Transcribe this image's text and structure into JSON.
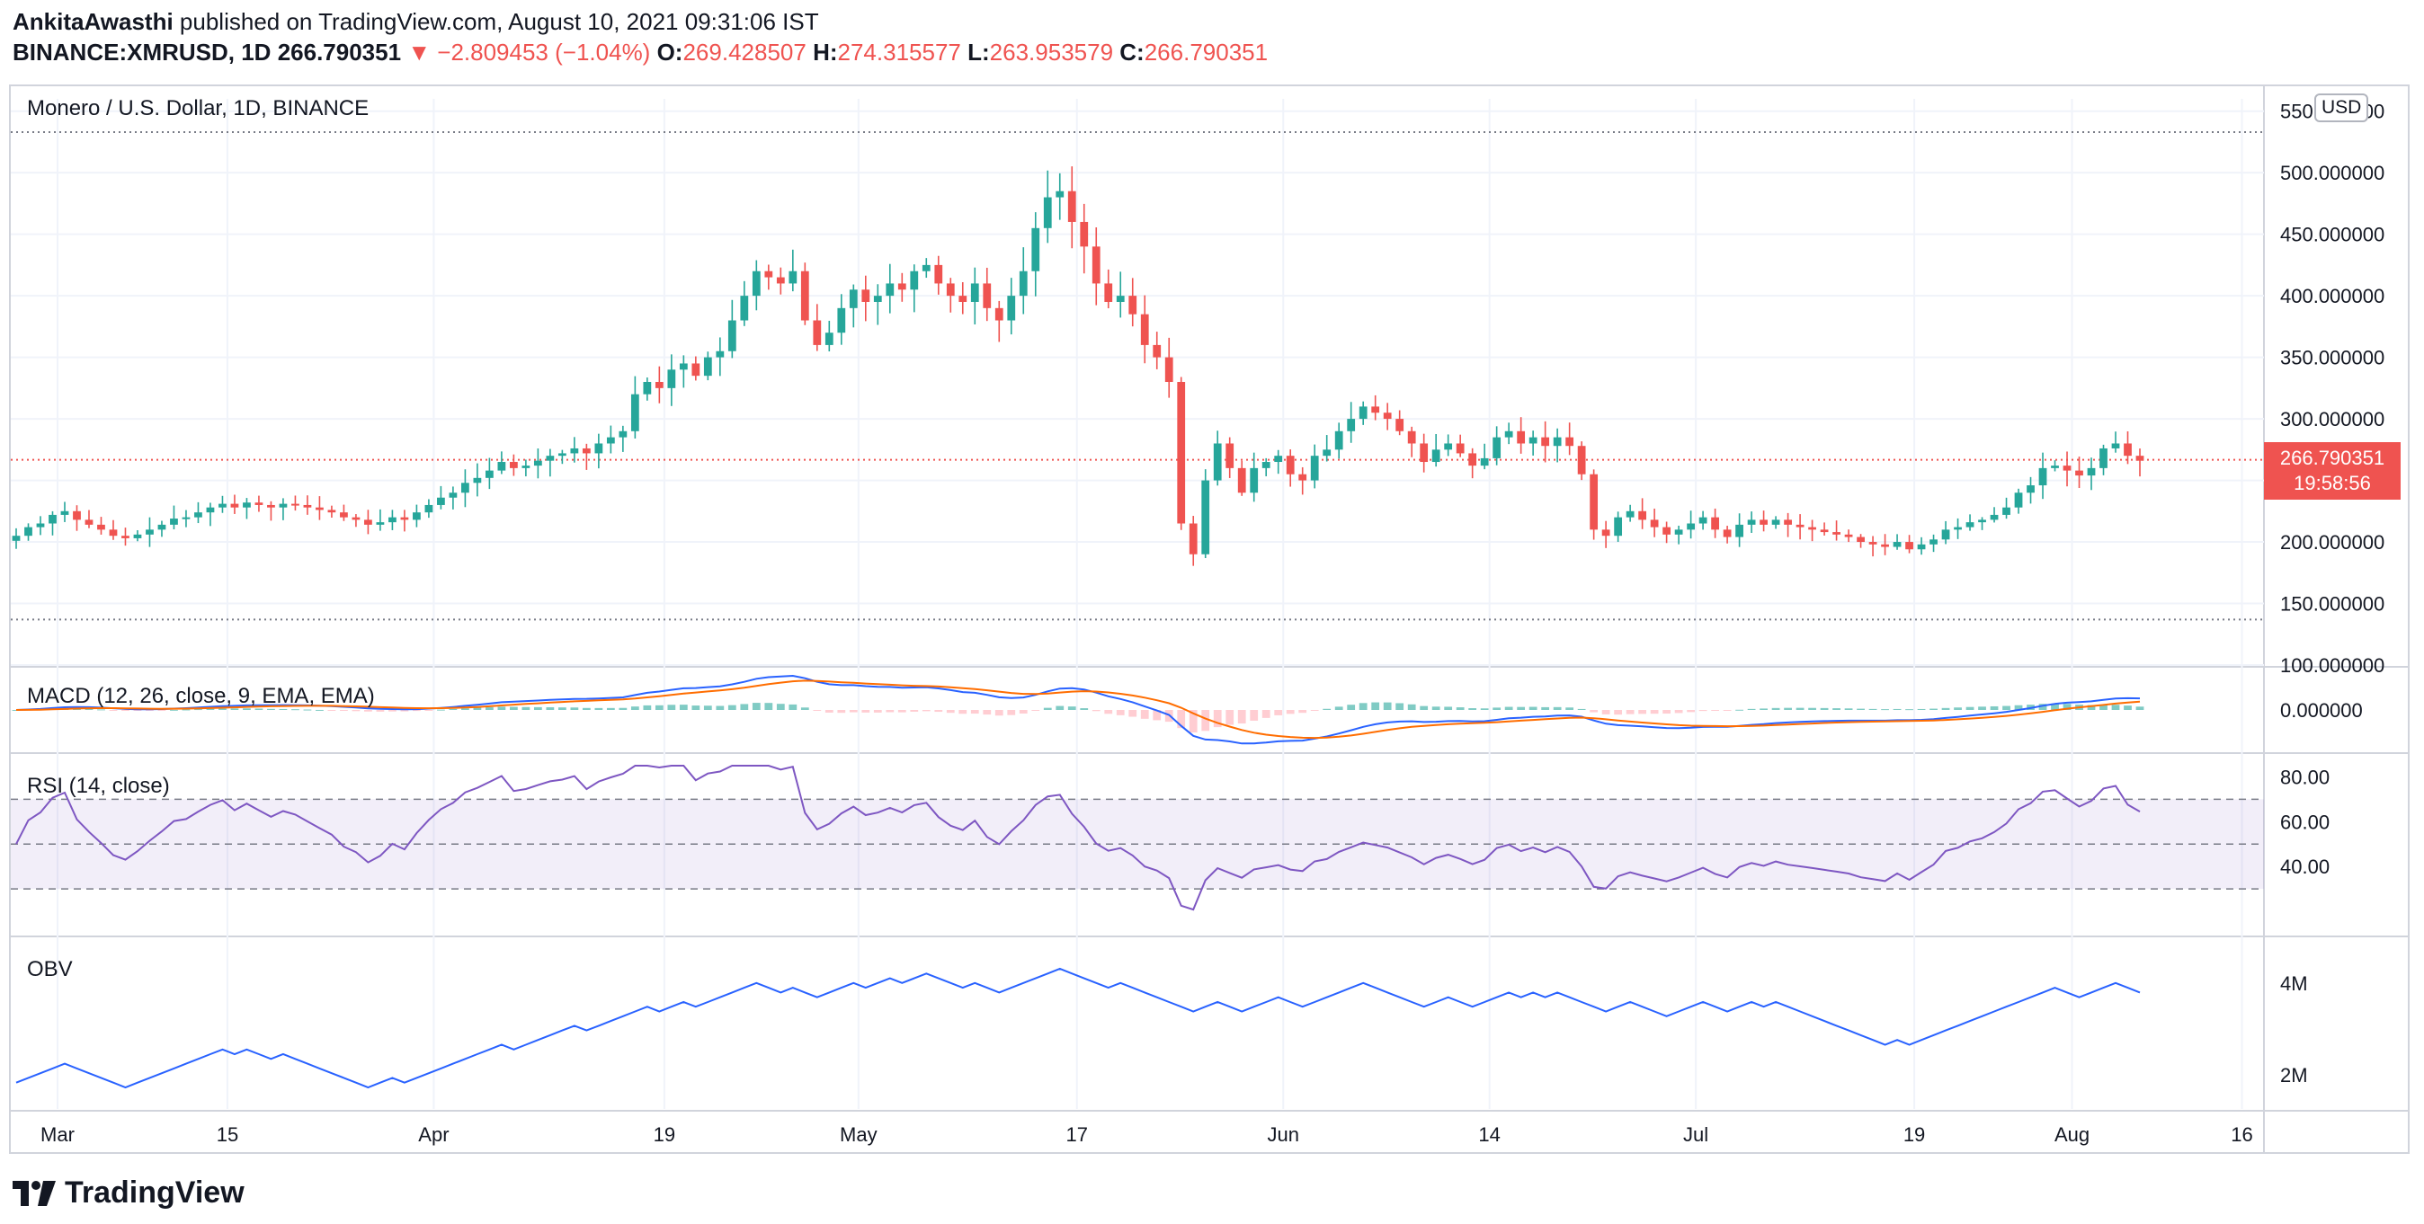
{
  "header": {
    "author": "AnkitaAwasthi",
    "published_text": "published on TradingView.com, August 10, 2021 09:31:06 IST",
    "symbol": "BINANCE:XMRUSD, 1D",
    "last": "266.790351",
    "change": "▼ −2.809453 (−1.04%)",
    "o_label": "O:",
    "o": "269.428507",
    "h_label": "H:",
    "h": "274.315577",
    "l_label": "L:",
    "l": "263.953579",
    "c_label": "C:",
    "c": "266.790351"
  },
  "colors": {
    "up": "#26a69a",
    "down": "#ef5350",
    "macd": "#2962ff",
    "signal": "#ff6d00",
    "rsi": "#7e57c2",
    "obv": "#2962ff"
  },
  "price_tag": {
    "value": "266.790351",
    "countdown": "19:58:56"
  },
  "currency_badge": "USD",
  "logo_text": "TradingView",
  "chart_data": {
    "type": "candlestick",
    "title": "Monero / U.S. Dollar, 1D, BINANCE",
    "x_ticks": [
      "Mar",
      "15",
      "Apr",
      "19",
      "May",
      "17",
      "Jun",
      "14",
      "Jul",
      "19",
      "Aug",
      "16"
    ],
    "price_ticks": [
      "550.000000",
      "500.000000",
      "450.000000",
      "400.000000",
      "350.000000",
      "300.000000",
      "250.000000",
      "200.000000",
      "150.000000",
      "100.000000"
    ],
    "ylim": [
      100,
      560
    ],
    "range_high": 533,
    "range_low": 137,
    "last_price": 266.79,
    "daily_closes": [
      205,
      212,
      215,
      222,
      225,
      218,
      214,
      210,
      205,
      203,
      206,
      210,
      214,
      219,
      220,
      224,
      228,
      231,
      228,
      232,
      230,
      228,
      231,
      230,
      228,
      226,
      224,
      220,
      218,
      214,
      216,
      220,
      218,
      224,
      230,
      236,
      240,
      248,
      252,
      258,
      265,
      260,
      262,
      266,
      270,
      272,
      276,
      272,
      280,
      285,
      290,
      320,
      330,
      325,
      340,
      345,
      335,
      350,
      355,
      380,
      400,
      420,
      415,
      410,
      420,
      380,
      360,
      370,
      390,
      405,
      395,
      400,
      410,
      405,
      420,
      425,
      410,
      400,
      395,
      410,
      390,
      380,
      400,
      420,
      455,
      480,
      485,
      460,
      440,
      410,
      395,
      400,
      385,
      360,
      350,
      330,
      215,
      190,
      250,
      280,
      260,
      240,
      260,
      265,
      270,
      255,
      250,
      270,
      275,
      290,
      300,
      310,
      305,
      300,
      290,
      280,
      265,
      275,
      280,
      272,
      262,
      268,
      285,
      290,
      280,
      285,
      278,
      285,
      278,
      255,
      210,
      205,
      220,
      225,
      218,
      212,
      206,
      210,
      215,
      220,
      210,
      204,
      214,
      218,
      214,
      218,
      214,
      212,
      210,
      208,
      206,
      204,
      200,
      198,
      196,
      200,
      194,
      198,
      202,
      210,
      212,
      216,
      218,
      222,
      228,
      240,
      246,
      260,
      262,
      258,
      254,
      260,
      276,
      280,
      270,
      266
    ],
    "macd_legend": "MACD (12, 26, close, 9, EMA, EMA)",
    "macd_ticks": [
      "0.000000"
    ],
    "rsi_legend": "RSI (14, close)",
    "rsi_ticks": [
      "80.00",
      "60.00",
      "40.00"
    ],
    "rsi_levels": [
      70,
      50,
      30
    ],
    "obv_legend": "OBV",
    "obv_ticks": [
      "4M",
      "2M"
    ]
  }
}
